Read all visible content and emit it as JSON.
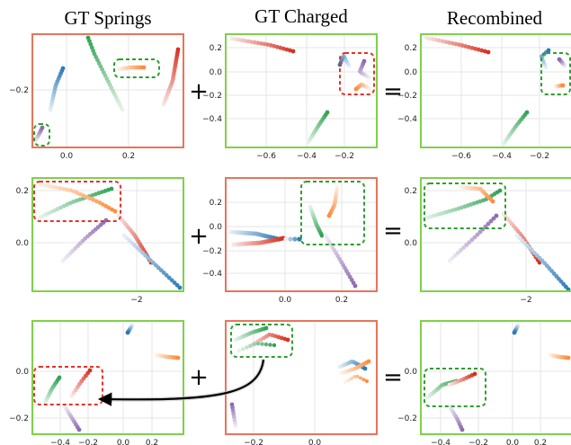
{
  "titles": [
    "GT Springs",
    "GT Charged",
    "Recombined"
  ],
  "operators": [
    "+",
    "="
  ],
  "colors": {
    "frame_red": "#e8745a",
    "frame_green": "#7fd14a",
    "box_red": "#e5332a",
    "box_green": "#2e9e2e",
    "traj_blue": "#2c7bb6",
    "traj_red": "#d7301f",
    "traj_green": "#31a354",
    "traj_orange": "#fd8d3c",
    "traj_purple": "#8c6bb1",
    "grid": "#e6e6e6"
  },
  "panels": {
    "r1c1": {
      "frame": "red",
      "x_ticks": [
        "0.0",
        "0.2"
      ],
      "y_ticks": [
        "−0.2"
      ]
    },
    "r1c2": {
      "frame": "green",
      "x_ticks": [
        "−0.6",
        "−0.4",
        "−0.2"
      ],
      "y_ticks": [
        "0.2",
        "0.0",
        "−0.2",
        "−0.4"
      ]
    },
    "r1c3": {
      "frame": "green",
      "x_ticks": [
        "−0.6",
        "−0.4",
        "−0.2"
      ],
      "y_ticks": [
        "0.2",
        "0.0",
        "−0.2",
        "−0.4"
      ]
    },
    "r2c1": {
      "frame": "green",
      "x_ticks": [
        "−2"
      ],
      "y_ticks": [
        "0.2",
        "0.0"
      ]
    },
    "r2c2": {
      "frame": "red",
      "x_ticks": [
        "0.0",
        "0.2"
      ],
      "y_ticks": [
        "0.2",
        "0.0",
        "−0.2",
        "−0.4"
      ]
    },
    "r2c3": {
      "frame": "green",
      "x_ticks": [
        "−2"
      ],
      "y_ticks": [
        "0.2",
        "0.0"
      ]
    },
    "r3c1": {
      "frame": "green",
      "x_ticks": [
        "−0.4",
        "−0.2",
        "0.0",
        "0.2"
      ],
      "y_ticks": [
        "0.0",
        "−0.2"
      ]
    },
    "r3c2": {
      "frame": "red",
      "x_ticks": [
        "−0.2",
        "0.0"
      ],
      "y_ticks": []
    },
    "r3c3": {
      "frame": "green",
      "x_ticks": [
        "−0.4",
        "−0.2",
        "0.0",
        "0.2"
      ],
      "y_ticks": [
        "0.0",
        "−0.2"
      ]
    }
  }
}
